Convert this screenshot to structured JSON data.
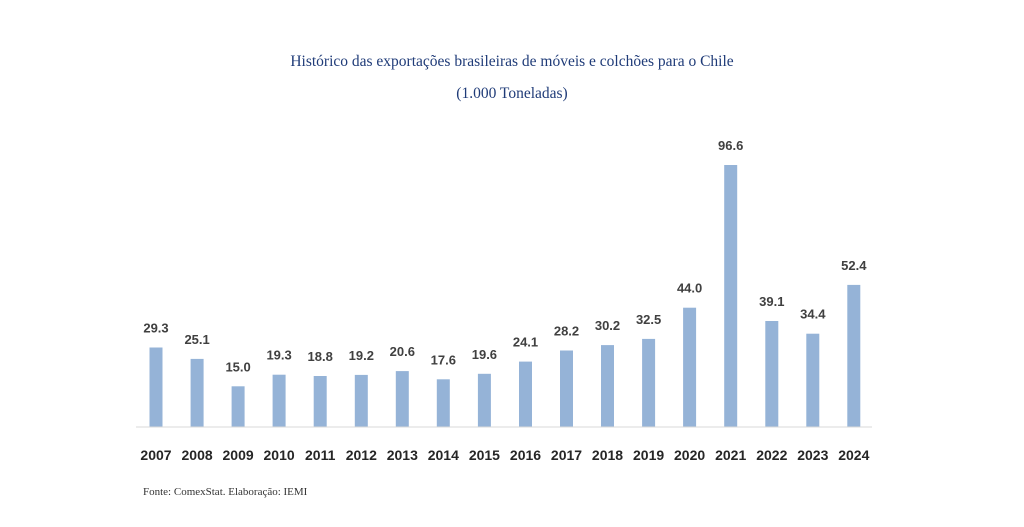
{
  "chart_data": {
    "type": "bar",
    "title": "Histórico das exportações brasileiras de móveis e colchões para o Chile",
    "subtitle": "(1.000 Toneladas)",
    "categories": [
      "2007",
      "2008",
      "2009",
      "2010",
      "2011",
      "2012",
      "2013",
      "2014",
      "2015",
      "2016",
      "2017",
      "2018",
      "2019",
      "2020",
      "2021",
      "2022",
      "2023",
      "2024"
    ],
    "values": [
      29.3,
      25.1,
      15.0,
      19.3,
      18.8,
      19.2,
      20.6,
      17.6,
      19.6,
      24.1,
      28.2,
      30.2,
      32.5,
      44.0,
      96.6,
      39.1,
      34.4,
      52.4
    ],
    "value_labels": [
      "29.3",
      "25.1",
      "15.0",
      "19.3",
      "18.8",
      "19.2",
      "20.6",
      "17.6",
      "19.6",
      "24.1",
      "28.2",
      "30.2",
      "32.5",
      "44.0",
      "96.6",
      "39.1",
      "34.4",
      "52.4"
    ],
    "xlabel": "",
    "ylabel": "",
    "bar_color": "#95b3d7",
    "axis_color": "#d9d9d9",
    "grid": false,
    "legend": "none"
  },
  "source": "Fonte: ComexStat. Elaboração: IEMI"
}
